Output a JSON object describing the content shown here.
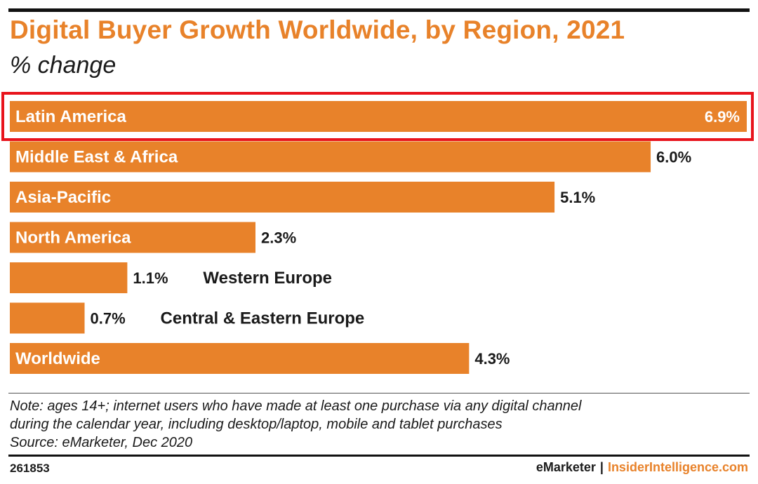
{
  "header": {
    "title": "Digital Buyer Growth Worldwide, by Region, 2021",
    "subtitle": "% change"
  },
  "chart_data": {
    "type": "bar",
    "orientation": "horizontal",
    "title": "Digital Buyer Growth Worldwide, by Region, 2021",
    "subtitle": "% change",
    "xlabel": "",
    "ylabel": "",
    "xlim": [
      0,
      6.9
    ],
    "categories": [
      "Latin America",
      "Middle East & Africa",
      "Asia-Pacific",
      "North America",
      "Western Europe",
      "Central & Eastern Europe",
      "Worldwide"
    ],
    "values": [
      6.9,
      6.0,
      5.1,
      2.3,
      1.1,
      0.7,
      4.3
    ],
    "value_labels": [
      "6.9%",
      "6.0%",
      "5.1%",
      "2.3%",
      "1.1%",
      "0.7%",
      "4.3%"
    ],
    "label_inside": [
      true,
      true,
      true,
      true,
      false,
      false,
      true
    ],
    "highlighted": [
      "Latin America"
    ],
    "grid": false,
    "legend": "none",
    "bar_color": "#e8822a",
    "highlight_color": "#e8141c"
  },
  "note": {
    "line1": "Note: ages 14+; internet users who have made at least one purchase via any digital channel",
    "line2": "during the calendar year, including desktop/laptop, mobile and tablet purchases",
    "source": "Source: eMarketer, Dec 2020"
  },
  "footer": {
    "chart_id": "261853",
    "brand_left": "eMarketer",
    "separator": "|",
    "brand_right": "InsiderIntelligence.com"
  }
}
